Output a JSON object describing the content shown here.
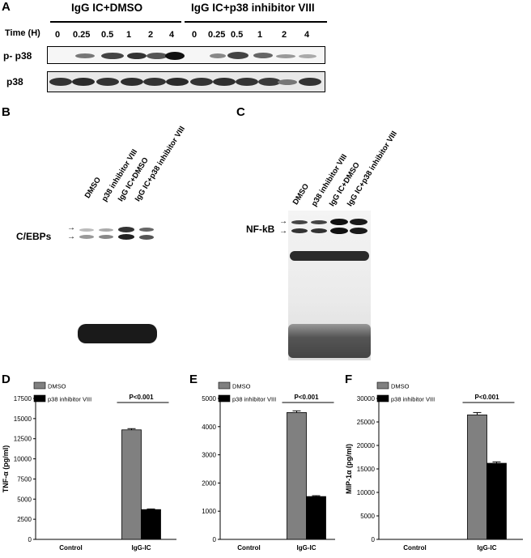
{
  "panels": {
    "A": {
      "letter": "A",
      "group1_title": "IgG IC+DMSO",
      "group2_title": "IgG IC+p38 inhibitor VIII",
      "time_label": "Time (H)",
      "times_group1": [
        "0",
        "0.25",
        "0.5",
        "1",
        "2",
        "4"
      ],
      "times_group2": [
        "0",
        "0.25",
        "0.5",
        "1",
        "2",
        "4"
      ],
      "row1_label": "p- p38",
      "row2_label": "p38"
    },
    "B": {
      "letter": "B",
      "lanes": [
        "DMSO",
        "p38 inhibitor VIII",
        "IgG IC+DMSO",
        "IgG IC+p38 inhibitor VIII"
      ],
      "band_label": "C/EBPs"
    },
    "C": {
      "letter": "C",
      "lanes": [
        "DMSO",
        "p38 inhibitor VIII",
        "IgG IC+DMSO",
        "IgG IC+p38 inhibitor VIII"
      ],
      "band_label": "NF-kB"
    }
  },
  "chart_data": [
    {
      "panel": "D",
      "type": "bar",
      "categories": [
        "Control",
        "IgG-IC"
      ],
      "series": [
        {
          "name": "DMSO",
          "values": [
            0,
            13600
          ],
          "errors": [
            0,
            150
          ],
          "color": "#808080"
        },
        {
          "name": "p38 inhibitor VIII",
          "values": [
            0,
            3700
          ],
          "errors": [
            0,
            80
          ],
          "color": "#000000"
        }
      ],
      "ylabel": "TNF-α (pg/ml)",
      "ylim": [
        0,
        17500
      ],
      "yticks": [
        "0",
        "2500",
        "5000",
        "7500",
        "10000",
        "12500",
        "15000",
        "17500"
      ],
      "annotation": "P<0.001",
      "legend_position": "top-left"
    },
    {
      "panel": "E",
      "type": "bar",
      "categories": [
        "Control",
        "IgG-IC"
      ],
      "series": [
        {
          "name": "DMSO",
          "values": [
            0,
            4500
          ],
          "errors": [
            0,
            60
          ],
          "color": "#808080"
        },
        {
          "name": "p38 inhibitor VIII",
          "values": [
            0,
            1520
          ],
          "errors": [
            0,
            30
          ],
          "color": "#000000"
        }
      ],
      "ylabel": "",
      "ylim": [
        0,
        5000
      ],
      "yticks": [
        "0",
        "1000",
        "2000",
        "3000",
        "4000",
        "5000"
      ],
      "annotation": "P<0.001",
      "legend_position": "top-left"
    },
    {
      "panel": "F",
      "type": "bar",
      "categories": [
        "Control",
        "IgG-IC"
      ],
      "series": [
        {
          "name": "DMSO",
          "values": [
            0,
            26500
          ],
          "errors": [
            0,
            500
          ],
          "color": "#808080"
        },
        {
          "name": "p38 inhibitor VIII",
          "values": [
            0,
            16200
          ],
          "errors": [
            0,
            300
          ],
          "color": "#000000"
        }
      ],
      "ylabel": "MIP-1α (pg/ml)",
      "ylim": [
        0,
        30000
      ],
      "yticks": [
        "0",
        "5000",
        "10000",
        "15000",
        "20000",
        "25000",
        "30000"
      ],
      "annotation": "P<0.001",
      "legend_position": "top-left"
    }
  ]
}
